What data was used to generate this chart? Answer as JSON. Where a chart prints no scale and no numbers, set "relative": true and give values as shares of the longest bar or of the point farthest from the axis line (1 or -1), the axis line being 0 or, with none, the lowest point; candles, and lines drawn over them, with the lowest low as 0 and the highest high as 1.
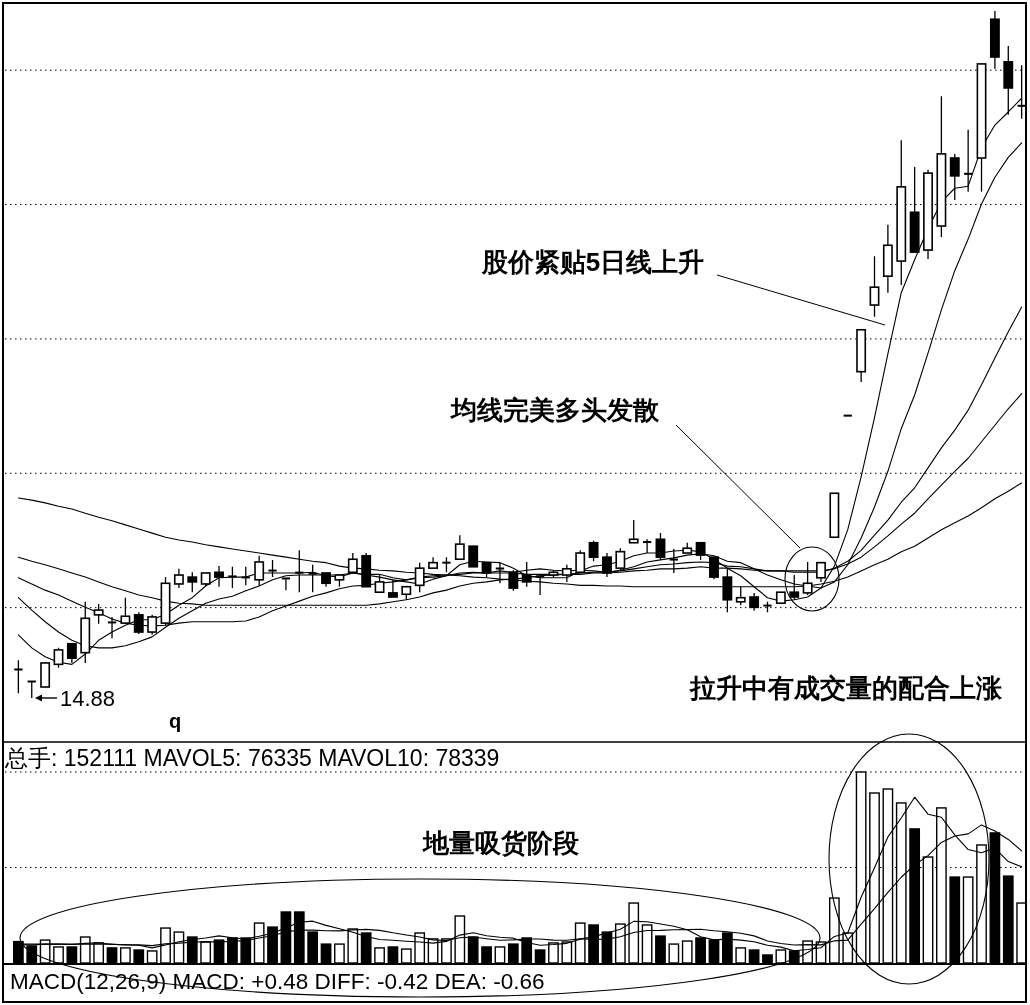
{
  "chart_data": [
    {
      "type": "candlestick",
      "relative": true,
      "grid": "y",
      "categories": [
        null,
        null,
        null,
        null,
        null,
        null,
        null,
        null,
        null,
        null,
        null,
        null,
        null,
        null,
        null,
        null,
        null,
        null,
        null,
        null,
        null,
        null,
        null,
        null,
        null,
        null,
        null,
        null,
        null,
        null,
        null,
        null,
        null,
        null,
        null,
        null,
        null,
        null,
        null,
        null,
        null,
        null,
        null,
        null,
        null,
        null,
        null,
        null,
        null,
        null,
        null,
        null,
        null,
        null,
        null,
        null,
        null,
        null,
        null,
        null,
        null,
        null,
        null,
        null,
        null,
        null,
        null,
        null,
        null,
        null,
        null,
        null,
        null,
        null,
        null,
        null
      ],
      "ohlc": [
        [
          0.042,
          0.055,
          0.007,
          0.041
        ],
        [
          0.025,
          0.026,
          0,
          0.023
        ],
        [
          0.016,
          0.052,
          0.015,
          0.051
        ],
        [
          0.049,
          0.073,
          0.044,
          0.07
        ],
        [
          0.079,
          0.08,
          0.051,
          0.058
        ],
        [
          0.066,
          0.14,
          0.051,
          0.116
        ],
        [
          0.121,
          0.137,
          0.108,
          0.128
        ],
        [
          0.111,
          0.118,
          0.087,
          0.109
        ],
        [
          0.109,
          0.146,
          0.108,
          0.119
        ],
        [
          0.121,
          0.125,
          0.093,
          0.096
        ],
        [
          0.096,
          0.121,
          0.092,
          0.118
        ],
        [
          0.109,
          0.176,
          0.106,
          0.167
        ],
        [
          0.166,
          0.188,
          0.16,
          0.179
        ],
        [
          0.176,
          0.183,
          0.154,
          0.169
        ],
        [
          0.166,
          0.183,
          0.163,
          0.182
        ],
        [
          0.183,
          0.192,
          0.162,
          0.176
        ],
        [
          0.178,
          0.191,
          0.16,
          0.176
        ],
        [
          0.176,
          0.191,
          0.164,
          0.175
        ],
        [
          0.172,
          0.207,
          0.163,
          0.198
        ],
        [
          0.186,
          0.201,
          0.176,
          0.185
        ],
        [
          0.175,
          0.176,
          0.157,
          0.173
        ],
        [
          0.183,
          0.215,
          0.154,
          0.182
        ],
        [
          0.182,
          0.194,
          0.154,
          0.18
        ],
        [
          0.182,
          0.183,
          0.162,
          0.167
        ],
        [
          0.172,
          0.179,
          0.162,
          0.179
        ],
        [
          0.183,
          0.211,
          0.182,
          0.202
        ],
        [
          0.207,
          0.211,
          0.16,
          0.162
        ],
        [
          0.154,
          0.179,
          0.154,
          0.169
        ],
        [
          0.153,
          0.172,
          0.146,
          0.147
        ],
        [
          0.151,
          0.164,
          0.143,
          0.162
        ],
        [
          0.164,
          0.197,
          0.154,
          0.189
        ],
        [
          0.189,
          0.205,
          0.189,
          0.197
        ],
        [
          0.197,
          0.205,
          0.183,
          0.197
        ],
        [
          0.202,
          0.237,
          0.202,
          0.224
        ],
        [
          0.221,
          0.221,
          0.189,
          0.191
        ],
        [
          0.197,
          0.197,
          0.176,
          0.182
        ],
        [
          0.188,
          0.197,
          0.167,
          0.189
        ],
        [
          0.183,
          0.186,
          0.156,
          0.16
        ],
        [
          0.179,
          0.198,
          0.162,
          0.169
        ],
        [
          0.178,
          0.179,
          0.15,
          0.176
        ],
        [
          0.179,
          0.186,
          0.175,
          0.183
        ],
        [
          0.179,
          0.194,
          0.169,
          0.188
        ],
        [
          0.183,
          0.215,
          0.183,
          0.211
        ],
        [
          0.226,
          0.229,
          0.199,
          0.205
        ],
        [
          0.205,
          0.211,
          0.176,
          0.182
        ],
        [
          0.189,
          0.218,
          0.186,
          0.213
        ],
        [
          0.226,
          0.259,
          0.226,
          0.231
        ],
        [
          0.227,
          0.231,
          0.211,
          0.227
        ],
        [
          0.231,
          0.24,
          0.201,
          0.205
        ],
        [
          0.201,
          0.217,
          0.182,
          0.202
        ],
        [
          0.211,
          0.226,
          0.211,
          0.218
        ],
        [
          0.226,
          0.227,
          0.201,
          0.208
        ],
        [
          0.205,
          0.207,
          0.173,
          0.176
        ],
        [
          0.176,
          0.189,
          0.125,
          0.143
        ],
        [
          0.14,
          0.162,
          0.135,
          0.146
        ],
        [
          0.147,
          0.153,
          0.127,
          0.132
        ],
        [
          0.135,
          0.14,
          0.125,
          0.134
        ],
        [
          0.138,
          0.154,
          0.137,
          0.154
        ],
        [
          0.154,
          0.179,
          0.143,
          0.147
        ],
        [
          0.153,
          0.198,
          0.15,
          0.167
        ],
        [
          0.175,
          0.198,
          0.169,
          0.197
        ],
        [
          0.234,
          0.298,
          0.234,
          0.298
        ],
        [
          0.411,
          0.411,
          0.411,
          0.411
        ],
        [
          0.475,
          0.536,
          0.46,
          0.536
        ],
        [
          0.572,
          0.643,
          0.555,
          0.598
        ],
        [
          0.614,
          0.689,
          0.59,
          0.659
        ],
        [
          0.636,
          0.812,
          0.601,
          0.744
        ],
        [
          0.707,
          0.773,
          0.648,
          0.649
        ],
        [
          0.652,
          0.769,
          0.639,
          0.764
        ],
        [
          0.687,
          0.876,
          0.671,
          0.792
        ],
        [
          0.786,
          0.792,
          0.725,
          0.76
        ],
        [
          0.763,
          0.827,
          0.737,
          0.763
        ],
        [
          0.786,
          0.923,
          0.737,
          0.923
        ],
        [
          0.988,
          1,
          0.916,
          0.933
        ],
        [
          0.926,
          0.949,
          0.849,
          0.888
        ],
        [
          0.862,
          0.921,
          0.843,
          0.862
        ]
      ],
      "series": [
        {
          "type": "line",
          "color": "#000000",
          "values": [
            0.092,
            0.073,
            0.06,
            0.052,
            0.049,
            0.064,
            0.084,
            0.096,
            0.106,
            0.114,
            0.114,
            0.122,
            0.135,
            0.146,
            0.163,
            0.175,
            0.176,
            0.176,
            0.182,
            0.182,
            0.182,
            0.182,
            0.183,
            0.178,
            0.176,
            0.182,
            0.179,
            0.176,
            0.172,
            0.169,
            0.166,
            0.173,
            0.178,
            0.194,
            0.199,
            0.198,
            0.197,
            0.189,
            0.178,
            0.175,
            0.175,
            0.175,
            0.185,
            0.192,
            0.194,
            0.199,
            0.207,
            0.211,
            0.211,
            0.214,
            0.215,
            0.213,
            0.202,
            0.189,
            0.178,
            0.162,
            0.146,
            0.141,
            0.143,
            0.147,
            0.16,
            0.192,
            0.245,
            0.322,
            0.408,
            0.501,
            0.59,
            0.638,
            0.683,
            0.722,
            0.742,
            0.745,
            0.801,
            0.834,
            0.853,
            0.873
          ]
        },
        {
          "type": "line",
          "color": "#000000",
          "values": [
            0.146,
            0.128,
            0.111,
            0.096,
            0.084,
            0.076,
            0.073,
            0.073,
            0.076,
            0.082,
            0.089,
            0.103,
            0.116,
            0.127,
            0.138,
            0.144,
            0.148,
            0.156,
            0.163,
            0.172,
            0.178,
            0.179,
            0.179,
            0.179,
            0.179,
            0.182,
            0.18,
            0.18,
            0.175,
            0.172,
            0.175,
            0.176,
            0.178,
            0.182,
            0.183,
            0.182,
            0.185,
            0.183,
            0.186,
            0.188,
            0.186,
            0.185,
            0.186,
            0.185,
            0.183,
            0.186,
            0.191,
            0.198,
            0.201,
            0.204,
            0.208,
            0.21,
            0.207,
            0.199,
            0.197,
            0.188,
            0.179,
            0.172,
            0.166,
            0.163,
            0.16,
            0.169,
            0.194,
            0.233,
            0.278,
            0.33,
            0.392,
            0.441,
            0.502,
            0.565,
            0.622,
            0.668,
            0.719,
            0.758,
            0.787,
            0.808
          ]
        },
        {
          "type": "line",
          "color": "#000000",
          "values": [
            0.175,
            0.166,
            0.157,
            0.15,
            0.141,
            0.132,
            0.124,
            0.115,
            0.109,
            0.106,
            0.105,
            0.106,
            0.109,
            0.111,
            0.111,
            0.111,
            0.111,
            0.112,
            0.118,
            0.127,
            0.134,
            0.141,
            0.148,
            0.153,
            0.159,
            0.163,
            0.164,
            0.167,
            0.169,
            0.172,
            0.176,
            0.178,
            0.179,
            0.18,
            0.182,
            0.182,
            0.182,
            0.182,
            0.18,
            0.18,
            0.18,
            0.18,
            0.182,
            0.183,
            0.183,
            0.185,
            0.188,
            0.191,
            0.194,
            0.195,
            0.197,
            0.198,
            0.197,
            0.192,
            0.191,
            0.188,
            0.185,
            0.185,
            0.183,
            0.183,
            0.183,
            0.189,
            0.199,
            0.215,
            0.237,
            0.259,
            0.285,
            0.306,
            0.335,
            0.364,
            0.39,
            0.419,
            0.456,
            0.495,
            0.533,
            0.569
          ]
        },
        {
          "type": "line",
          "color": "#000000",
          "values": [
            0.205,
            0.199,
            0.194,
            0.188,
            0.182,
            0.176,
            0.169,
            0.162,
            0.156,
            0.15,
            0.146,
            0.141,
            0.138,
            0.137,
            0.135,
            0.135,
            0.135,
            0.135,
            0.135,
            0.135,
            0.135,
            0.135,
            0.135,
            0.135,
            0.135,
            0.135,
            0.135,
            0.137,
            0.14,
            0.143,
            0.147,
            0.153,
            0.157,
            0.163,
            0.167,
            0.169,
            0.172,
            0.173,
            0.175,
            0.178,
            0.179,
            0.18,
            0.18,
            0.182,
            0.182,
            0.183,
            0.185,
            0.186,
            0.188,
            0.188,
            0.189,
            0.191,
            0.189,
            0.189,
            0.188,
            0.186,
            0.185,
            0.185,
            0.185,
            0.185,
            0.185,
            0.188,
            0.195,
            0.205,
            0.22,
            0.236,
            0.253,
            0.269,
            0.29,
            0.31,
            0.33,
            0.349,
            0.373,
            0.397,
            0.421,
            0.443
          ]
        },
        {
          "type": "line",
          "color": "#000000",
          "values": [
            0.291,
            0.288,
            0.284,
            0.279,
            0.275,
            0.269,
            0.263,
            0.258,
            0.252,
            0.246,
            0.24,
            0.234,
            0.23,
            0.227,
            0.223,
            0.22,
            0.217,
            0.214,
            0.211,
            0.208,
            0.205,
            0.202,
            0.199,
            0.197,
            0.192,
            0.189,
            0.188,
            0.186,
            0.185,
            0.183,
            0.182,
            0.18,
            0.179,
            0.178,
            0.176,
            0.175,
            0.173,
            0.172,
            0.17,
            0.169,
            0.167,
            0.166,
            0.164,
            0.164,
            0.163,
            0.163,
            0.162,
            0.162,
            0.162,
            0.162,
            0.162,
            0.162,
            0.162,
            0.162,
            0.162,
            0.162,
            0.162,
            0.162,
            0.162,
            0.163,
            0.166,
            0.17,
            0.176,
            0.185,
            0.194,
            0.202,
            0.213,
            0.221,
            0.233,
            0.245,
            0.255,
            0.265,
            0.277,
            0.29,
            0.301,
            0.313
          ]
        }
      ],
      "annotations": [
        "股价紧贴5日线上升",
        "均线完美多头发散",
        "拉升中有成交量的配合上涨",
        "14.88",
        "q"
      ]
    },
    {
      "type": "bar",
      "relative": true,
      "title": "总手: 152111 MAVOL5: 76335 MAVOL10: 78339",
      "categories": [
        null,
        null,
        null,
        null,
        null,
        null,
        null,
        null,
        null,
        null,
        null,
        null,
        null,
        null,
        null,
        null,
        null,
        null,
        null,
        null,
        null,
        null,
        null,
        null,
        null,
        null,
        null,
        null,
        null,
        null,
        null,
        null,
        null,
        null,
        null,
        null,
        null,
        null,
        null,
        null,
        null,
        null,
        null,
        null,
        null,
        null,
        null,
        null,
        null,
        null,
        null,
        null,
        null,
        null,
        null,
        null,
        null,
        null,
        null,
        null,
        null,
        null,
        null,
        null,
        null,
        null,
        null,
        null,
        null,
        null,
        null,
        null,
        null,
        null,
        null,
        null
      ],
      "series": [
        {
          "type": "bar",
          "values": [
            0.112,
            0.089,
            0.12,
            0.084,
            0.084,
            0.136,
            0.105,
            0.079,
            0.079,
            0.068,
            0.063,
            0.183,
            0.162,
            0.136,
            0.11,
            0.12,
            0.131,
            0.131,
            0.209,
            0.188,
            0.267,
            0.267,
            0.162,
            0.099,
            0.099,
            0.178,
            0.157,
            0.079,
            0.084,
            0.073,
            0.157,
            0.126,
            0.126,
            0.246,
            0.136,
            0.084,
            0.084,
            0.099,
            0.131,
            0.068,
            0.105,
            0.11,
            0.209,
            0.199,
            0.162,
            0.204,
            0.314,
            0.199,
            0.141,
            0.099,
            0.115,
            0.131,
            0.12,
            0.157,
            0.079,
            0.068,
            0.042,
            0.068,
            0.063,
            0.115,
            0.11,
            0.34,
            0.157,
            1,
            0.89,
            0.911,
            0.838,
            0.702,
            0.555,
            0.812,
            0.45,
            0.45,
            0.618,
            0.681,
            0.455,
            0.314
          ],
          "colors": [
            "#000000",
            "#000000",
            "#ffffff",
            "#ffffff",
            "#000000",
            "#ffffff",
            "#ffffff",
            "#000000",
            "#ffffff",
            "#000000",
            "#ffffff",
            "#ffffff",
            "#ffffff",
            "#000000",
            "#ffffff",
            "#000000",
            "#000000",
            "#000000",
            "#ffffff",
            "#000000",
            "#000000",
            "#000000",
            "#000000",
            "#000000",
            "#ffffff",
            "#ffffff",
            "#000000",
            "#ffffff",
            "#000000",
            "#ffffff",
            "#ffffff",
            "#ffffff",
            "#ffffff",
            "#ffffff",
            "#000000",
            "#000000",
            "#ffffff",
            "#000000",
            "#000000",
            "#000000",
            "#ffffff",
            "#ffffff",
            "#ffffff",
            "#000000",
            "#000000",
            "#ffffff",
            "#ffffff",
            "#ffffff",
            "#000000",
            "#ffffff",
            "#ffffff",
            "#000000",
            "#000000",
            "#000000",
            "#ffffff",
            "#000000",
            "#000000",
            "#ffffff",
            "#000000",
            "#ffffff",
            "#ffffff",
            "#ffffff",
            "#ffffff",
            "#ffffff",
            "#ffffff",
            "#ffffff",
            "#ffffff",
            "#000000",
            "#ffffff",
            "#ffffff",
            "#000000",
            "#ffffff",
            "#ffffff",
            "#000000",
            "#000000",
            "#ffffff"
          ]
        },
        {
          "type": "line",
          "color": "#000000",
          "values": [
            0.094,
            0.094,
            0.099,
            0.099,
            0.097,
            0.103,
            0.106,
            0.097,
            0.096,
            0.093,
            0.079,
            0.094,
            0.111,
            0.123,
            0.131,
            0.142,
            0.132,
            0.126,
            0.14,
            0.156,
            0.185,
            0.213,
            0.219,
            0.197,
            0.179,
            0.161,
            0.139,
            0.123,
            0.119,
            0.114,
            0.11,
            0.104,
            0.113,
            0.146,
            0.158,
            0.143,
            0.135,
            0.13,
            0.107,
            0.093,
            0.097,
            0.103,
            0.125,
            0.138,
            0.157,
            0.177,
            0.218,
            0.216,
            0.204,
            0.192,
            0.174,
            0.137,
            0.121,
            0.125,
            0.12,
            0.111,
            0.093,
            0.083,
            0.064,
            0.071,
            0.08,
            0.139,
            0.157,
            0.344,
            0.499,
            0.66,
            0.759,
            0.868,
            0.779,
            0.763,
            0.671,
            0.594,
            0.577,
            0.602,
            0.531,
            0.504
          ]
        },
        {
          "type": "line",
          "color": "#000000",
          "values": [
            0.099,
            0.099,
            0.099,
            0.099,
            0.099,
            0.099,
            0.099,
            0.099,
            0.094,
            0.095,
            0.091,
            0.1,
            0.104,
            0.109,
            0.112,
            0.11,
            0.113,
            0.118,
            0.131,
            0.143,
            0.164,
            0.172,
            0.172,
            0.169,
            0.168,
            0.173,
            0.176,
            0.171,
            0.158,
            0.147,
            0.136,
            0.121,
            0.118,
            0.132,
            0.136,
            0.127,
            0.119,
            0.121,
            0.126,
            0.126,
            0.12,
            0.119,
            0.127,
            0.123,
            0.125,
            0.137,
            0.16,
            0.17,
            0.171,
            0.174,
            0.175,
            0.177,
            0.169,
            0.164,
            0.156,
            0.142,
            0.115,
            0.102,
            0.094,
            0.096,
            0.095,
            0.116,
            0.12,
            0.204,
            0.285,
            0.37,
            0.449,
            0.513,
            0.562,
            0.631,
            0.665,
            0.676,
            0.723,
            0.691,
            0.647,
            0.587
          ]
        }
      ],
      "ref_lines": [
        {
          "axis": "y",
          "value": 0.5,
          "color": "#000000",
          "line_style": "dotted"
        },
        {
          "axis": "y",
          "value": 1,
          "color": "#000000",
          "line_style": "dotted"
        }
      ],
      "annotations": [
        "地量吸货阶段"
      ]
    },
    {
      "type": "other",
      "title": "MACD(12,26,9) MACD: +0.48 DIFF: -0.42 DEA: -0.66"
    }
  ]
}
